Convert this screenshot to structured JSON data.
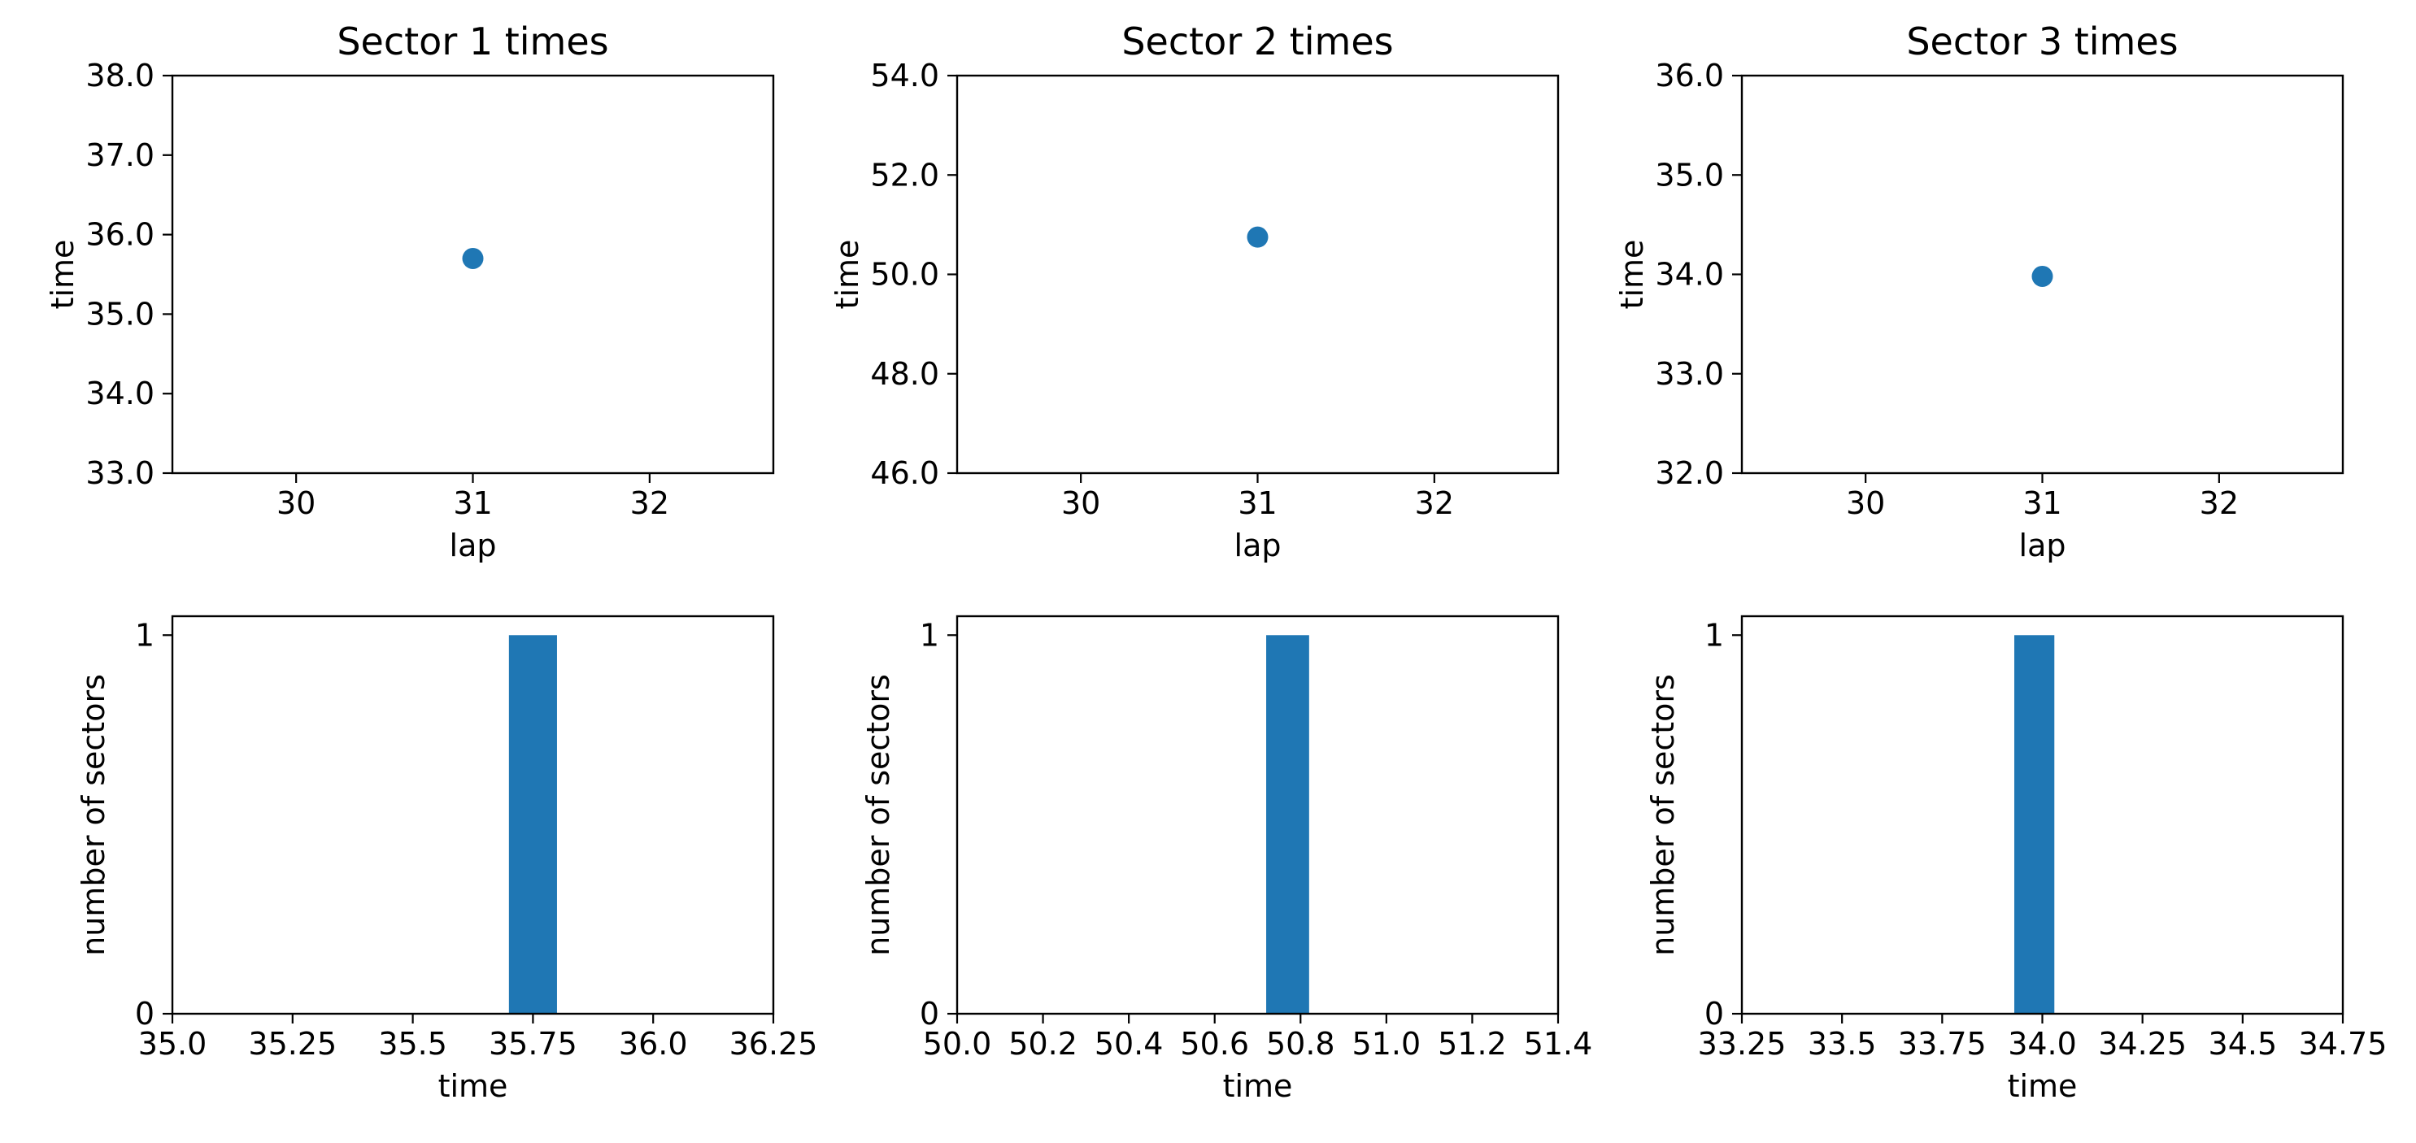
{
  "chart_data": [
    {
      "type": "scatter",
      "title": "Sector 1 times",
      "xlabel": "lap",
      "ylabel": "time",
      "xlim": [
        29.3,
        32.7
      ],
      "ylim": [
        33.0,
        38.0
      ],
      "xticks": [
        30,
        31,
        32
      ],
      "xtick_labels": [
        "30",
        "31",
        "32"
      ],
      "yticks": [
        33.0,
        34.0,
        35.0,
        36.0,
        37.0,
        38.0
      ],
      "ytick_labels": [
        "33.0",
        "34.0",
        "35.0",
        "36.0",
        "37.0",
        "38.0"
      ],
      "points": [
        {
          "x": 31,
          "y": 35.7
        }
      ],
      "color": "#1f77b4",
      "grid": false
    },
    {
      "type": "scatter",
      "title": "Sector 2 times",
      "xlabel": "lap",
      "ylabel": "time",
      "xlim": [
        29.3,
        32.7
      ],
      "ylim": [
        46.0,
        54.0
      ],
      "xticks": [
        30,
        31,
        32
      ],
      "xtick_labels": [
        "30",
        "31",
        "32"
      ],
      "yticks": [
        46.0,
        48.0,
        50.0,
        52.0,
        54.0
      ],
      "ytick_labels": [
        "46.0",
        "48.0",
        "50.0",
        "52.0",
        "54.0"
      ],
      "points": [
        {
          "x": 31,
          "y": 50.75
        }
      ],
      "color": "#1f77b4",
      "grid": false
    },
    {
      "type": "scatter",
      "title": "Sector 3 times",
      "xlabel": "lap",
      "ylabel": "time",
      "xlim": [
        29.3,
        32.7
      ],
      "ylim": [
        32.0,
        36.0
      ],
      "xticks": [
        30,
        31,
        32
      ],
      "xtick_labels": [
        "30",
        "31",
        "32"
      ],
      "yticks": [
        32.0,
        33.0,
        34.0,
        35.0,
        36.0
      ],
      "ytick_labels": [
        "32.0",
        "33.0",
        "34.0",
        "35.0",
        "36.0"
      ],
      "points": [
        {
          "x": 31,
          "y": 33.98
        }
      ],
      "color": "#1f77b4",
      "grid": false
    },
    {
      "type": "bar",
      "xlabel": "time",
      "ylabel": "number of sectors",
      "xlim": [
        35.0,
        36.25
      ],
      "ylim": [
        0,
        1.05
      ],
      "xticks": [
        35.0,
        35.25,
        35.5,
        35.75,
        36.0,
        36.25
      ],
      "xtick_labels": [
        "35.0",
        "35.25",
        "35.5",
        "35.75",
        "36.0",
        "36.25"
      ],
      "yticks": [
        0,
        1
      ],
      "ytick_labels": [
        "0",
        "1"
      ],
      "bars": [
        {
          "x0": 35.7,
          "x1": 35.8,
          "count": 1
        }
      ],
      "color": "#1f77b4",
      "grid": false
    },
    {
      "type": "bar",
      "xlabel": "time",
      "ylabel": "number of sectors",
      "xlim": [
        50.0,
        51.4
      ],
      "ylim": [
        0,
        1.05
      ],
      "xticks": [
        50.0,
        50.2,
        50.4,
        50.6,
        50.8,
        51.0,
        51.2,
        51.4
      ],
      "xtick_labels": [
        "50.0",
        "50.2",
        "50.4",
        "50.6",
        "50.8",
        "51.0",
        "51.2",
        "51.4"
      ],
      "yticks": [
        0,
        1
      ],
      "ytick_labels": [
        "0",
        "1"
      ],
      "bars": [
        {
          "x0": 50.72,
          "x1": 50.82,
          "count": 1
        }
      ],
      "color": "#1f77b4",
      "grid": false
    },
    {
      "type": "bar",
      "xlabel": "time",
      "ylabel": "number of sectors",
      "xlim": [
        33.25,
        34.75
      ],
      "ylim": [
        0,
        1.05
      ],
      "xticks": [
        33.25,
        33.5,
        33.75,
        34.0,
        34.25,
        34.5,
        34.75
      ],
      "xtick_labels": [
        "33.25",
        "33.5",
        "33.75",
        "34.0",
        "34.25",
        "34.5",
        "34.75"
      ],
      "yticks": [
        0,
        1
      ],
      "ytick_labels": [
        "0",
        "1"
      ],
      "bars": [
        {
          "x0": 33.93,
          "x1": 34.03,
          "count": 1
        }
      ],
      "color": "#1f77b4",
      "grid": false
    }
  ]
}
